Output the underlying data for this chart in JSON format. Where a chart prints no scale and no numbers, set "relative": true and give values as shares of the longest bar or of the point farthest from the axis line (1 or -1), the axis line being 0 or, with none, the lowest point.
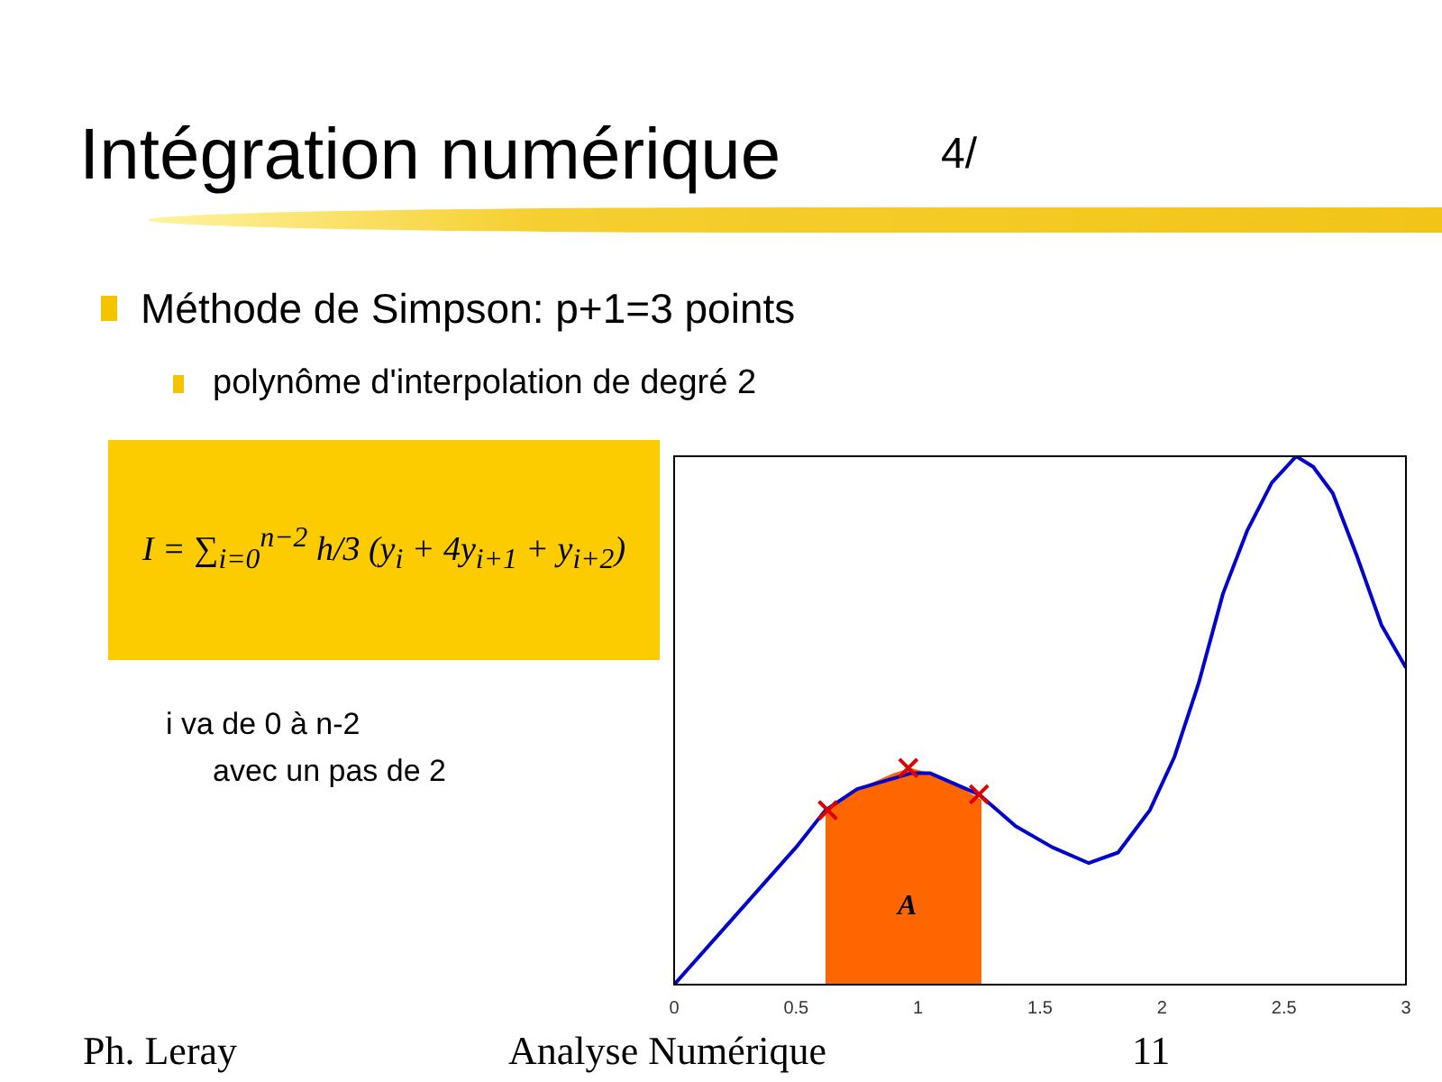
{
  "chart_data": {
    "type": "line",
    "title": "Intégration numérique",
    "relative": true,
    "xlim": [
      0,
      3
    ],
    "xticks": [
      0,
      0.5,
      1,
      1.5,
      2,
      2.5,
      3
    ],
    "grid": false,
    "legend": false,
    "line_style": "solid",
    "series": [
      {
        "type": "area",
        "color": "#ff6600",
        "x": [
          0.62,
          0.75,
          0.9,
          0.97,
          1.05,
          1.15,
          1.26
        ],
        "values": [
          0.33,
          0.37,
          0.4,
          0.41,
          0.4,
          0.38,
          0.35
        ]
      },
      {
        "color": "#0000cc",
        "marker": "none",
        "x": [
          0,
          0.25,
          0.5,
          0.62,
          0.75,
          0.97,
          1.05,
          1.25,
          1.4,
          1.55,
          1.7,
          1.82,
          1.95,
          2.05,
          2.15,
          2.25,
          2.35,
          2.45,
          2.55,
          2.62,
          2.7,
          2.8,
          2.9,
          3
        ],
        "values": [
          0,
          0.13,
          0.26,
          0.33,
          0.37,
          0.4,
          0.4,
          0.36,
          0.3,
          0.26,
          0.23,
          0.25,
          0.33,
          0.43,
          0.57,
          0.74,
          0.86,
          0.95,
          1,
          0.98,
          0.93,
          0.81,
          0.68,
          0.6
        ]
      },
      {
        "type": "scatter",
        "color": "#dd0000",
        "marker": "cross",
        "x": [
          0.63,
          0.96,
          1.25
        ],
        "values": [
          0.33,
          0.41,
          0.36
        ]
      }
    ],
    "annotations": [
      "4/",
      "Méthode de Simpson: p+1=3 points",
      "polynôme d'interpolation de degré 2",
      "I = ∑$_{i=0}$$^{n−2}$ h/3 (y$_{i}$ + 4y$_{i+1}$ + y$_{i+2}$)",
      "i va de 0 à n-2",
      "avec un pas de 2",
      "Ph. Leray",
      "Analyse Numérique",
      "11",
      "A"
    ]
  }
}
